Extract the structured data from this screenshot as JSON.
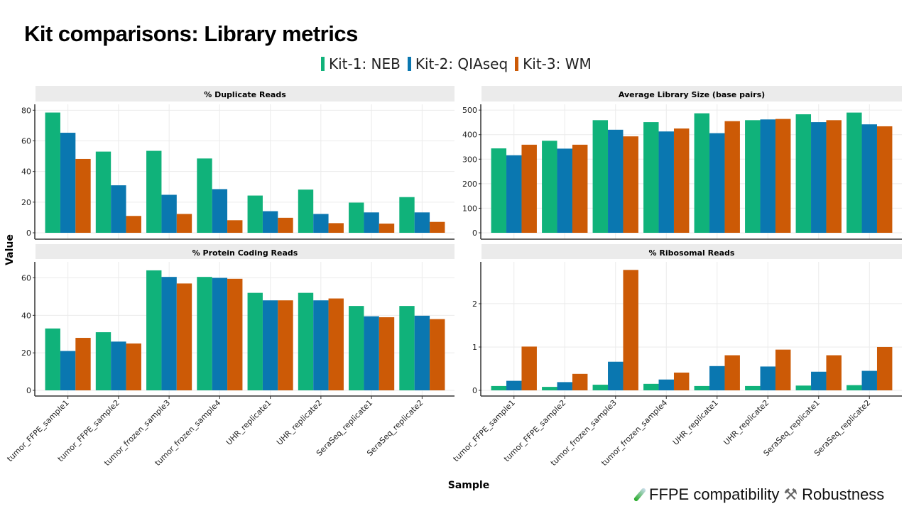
{
  "title": "Kit comparisons: Library metrics",
  "footer": {
    "item1_icon": "test-tube-icon",
    "item1": "FFPE compatibility",
    "item2_icon": "tools-icon",
    "item2": "Robustness"
  },
  "chart_data": {
    "type": "bar",
    "xlabel": "Sample",
    "ylabel": "Value",
    "legend": {
      "placement": "top",
      "entries": [
        "Kit-1: NEB",
        "Kit-2: QIAseq",
        "Kit-3: WM"
      ]
    },
    "colors": [
      "#10b27a",
      "#0a77b0",
      "#cc5a06"
    ],
    "categories": [
      "tumor_FFPE_sample1",
      "tumor_FFPE_sample2",
      "tumor_frozen_sample3",
      "tumor_frozen_sample4",
      "UHR_replicate1",
      "UHR_replicate2",
      "SeraSeq_replicate1",
      "SeraSeq_replicate2"
    ],
    "grid": true,
    "panels": [
      {
        "title": "% Duplicate Reads",
        "ylim": [
          0,
          82
        ],
        "yticks": [
          0,
          20,
          40,
          60,
          80
        ],
        "series": [
          {
            "name": "Kit-1: NEB",
            "values": [
              78.5,
              53,
              53.5,
              48.5,
              24.3,
              28.2,
              19.7,
              23.3
            ]
          },
          {
            "name": "Kit-2: QIAseq",
            "values": [
              65.3,
              31,
              24.8,
              28.5,
              14.1,
              12.3,
              13.3,
              13.3
            ]
          },
          {
            "name": "Kit-3: WM",
            "values": [
              48.2,
              11,
              12.3,
              8.2,
              9.8,
              6.3,
              6,
              7.1
            ]
          }
        ]
      },
      {
        "title": "Average Library Size (base pairs)",
        "ylim": [
          0,
          512
        ],
        "yticks": [
          0,
          100,
          200,
          300,
          400,
          500
        ],
        "series": [
          {
            "name": "Kit-1: NEB",
            "values": [
              344,
              375,
              459,
              451,
              487,
              459,
              483,
              490
            ]
          },
          {
            "name": "Kit-2: QIAseq",
            "values": [
              316,
              343,
              420,
              413,
              406,
              462,
              451,
              442
            ]
          },
          {
            "name": "Kit-3: WM",
            "values": [
              359,
              359,
              393,
              425,
              455,
              464,
              459,
              434
            ]
          }
        ]
      },
      {
        "title": "% Protein Coding Reads",
        "ylim": [
          0,
          67
        ],
        "yticks": [
          0,
          20,
          40,
          60
        ],
        "series": [
          {
            "name": "Kit-1: NEB",
            "values": [
              33,
              31,
              64,
              60.5,
              52,
              52,
              45,
              45
            ]
          },
          {
            "name": "Kit-2: QIAseq",
            "values": [
              21,
              26,
              60.5,
              60,
              48,
              48,
              39.5,
              39.8
            ]
          },
          {
            "name": "Kit-3: WM",
            "values": [
              28,
              25,
              57,
              59.5,
              48,
              49,
              39,
              38
            ]
          }
        ]
      },
      {
        "title": "% Ribosomal Reads",
        "ylim": [
          0,
          2.9
        ],
        "yticks": [
          0,
          1,
          2
        ],
        "series": [
          {
            "name": "Kit-1: NEB",
            "values": [
              0.1,
              0.08,
              0.13,
              0.15,
              0.1,
              0.1,
              0.11,
              0.12
            ]
          },
          {
            "name": "Kit-2: QIAseq",
            "values": [
              0.22,
              0.19,
              0.66,
              0.25,
              0.56,
              0.55,
              0.43,
              0.45
            ]
          },
          {
            "name": "Kit-3: WM",
            "values": [
              1.01,
              0.38,
              2.78,
              0.41,
              0.81,
              0.94,
              0.81,
              1.0
            ]
          }
        ]
      }
    ]
  }
}
